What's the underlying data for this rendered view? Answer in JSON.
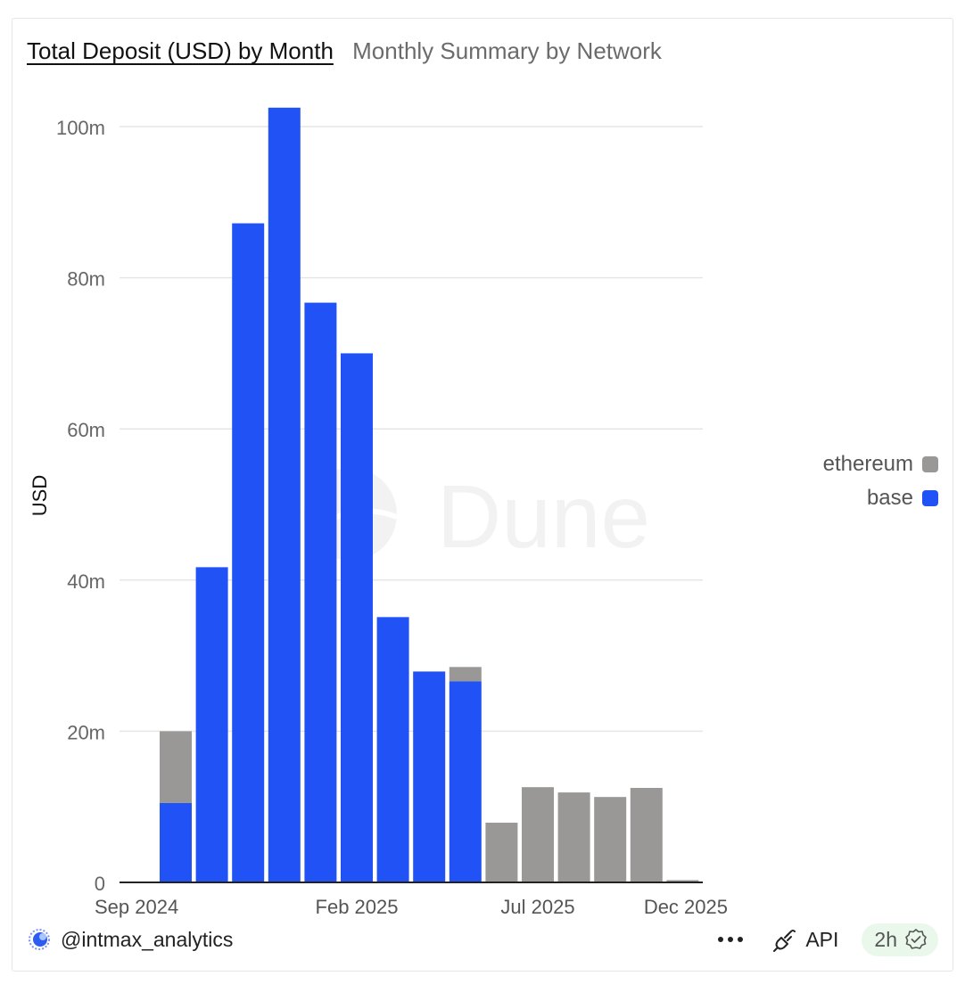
{
  "tabs": {
    "active": "Total Deposit (USD) by Month",
    "inactive": "Monthly Summary by Network"
  },
  "legend": [
    {
      "label": "ethereum",
      "color": "#999897"
    },
    {
      "label": "base",
      "color": "#2152f5"
    }
  ],
  "watermark": "Dune",
  "footer": {
    "author": "@intmax_analytics",
    "api_label": "API",
    "freshness": "2h"
  },
  "colors": {
    "base": "#2152f5",
    "ethereum": "#999897",
    "grid": "#e6e6e6",
    "axis": "#222222"
  },
  "chart_data": {
    "type": "bar",
    "stacked": true,
    "categories": [
      "Sep 2024",
      "Oct 2024",
      "Nov 2024",
      "Dec 2024",
      "Jan 2025",
      "Feb 2025",
      "Mar 2025",
      "Apr 2025",
      "May 2025",
      "Jun 2025",
      "Jul 2025",
      "Aug 2025",
      "Sep 2025",
      "Oct 2025",
      "Nov 2025",
      "Dec 2025"
    ],
    "series": [
      {
        "name": "base",
        "values": [
          10.5,
          41.7,
          87.2,
          102.5,
          76.7,
          70.0,
          35.1,
          27.9,
          26.6,
          0,
          0,
          0,
          0,
          0,
          0,
          0
        ]
      },
      {
        "name": "ethereum",
        "values": [
          9.5,
          0,
          0,
          0,
          0,
          0,
          0,
          0,
          1.9,
          7.9,
          12.6,
          11.9,
          11.3,
          12.5,
          0.3,
          0
        ]
      }
    ],
    "x_tick_labels": [
      "Sep 2024",
      "Feb 2025",
      "Jul 2025",
      "Dec 2025"
    ],
    "y_ticks": [
      0,
      20,
      40,
      60,
      80,
      100
    ],
    "y_tick_labels": [
      "0",
      "20m",
      "40m",
      "60m",
      "80m",
      "100m"
    ],
    "ylabel": "USD",
    "ylim": [
      0,
      102.5
    ],
    "unit": "million USD",
    "grid": true,
    "legend_position": "right"
  }
}
